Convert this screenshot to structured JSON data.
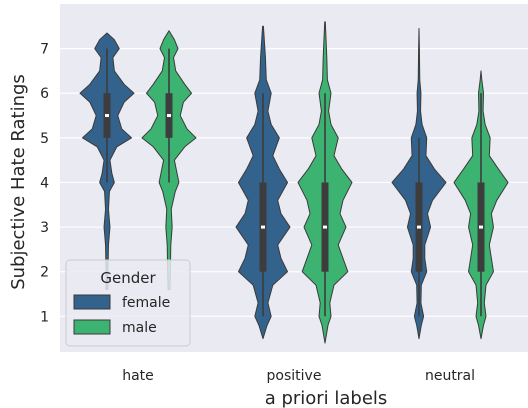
{
  "chart_data": {
    "type": "violin",
    "xlabel": "a priori labels",
    "ylabel": "Subjective Hate Ratings",
    "ylim": [
      0.2,
      8.0
    ],
    "yticks": [
      1,
      2,
      3,
      4,
      5,
      6,
      7
    ],
    "categories": [
      "hate",
      "positive",
      "neutral"
    ],
    "grid": true,
    "legend": {
      "title": "Gender",
      "placement": "lower-left",
      "entries": [
        {
          "name": "female",
          "color": "#33638d"
        },
        {
          "name": "male",
          "color": "#3cb371"
        }
      ]
    },
    "series": [
      {
        "name": "female",
        "color": "#33638d",
        "violins": [
          {
            "category": "hate",
            "range": [
              1.6,
              7.35
            ],
            "quartiles": [
              5.0,
              5.5,
              6.0
            ],
            "whiskers": [
              4.0,
              7.0
            ],
            "density": [
              [
                1.6,
                0.02
              ],
              [
                2.0,
                0.02
              ],
              [
                2.6,
                0.03
              ],
              [
                3.0,
                0.06
              ],
              [
                3.4,
                0.03
              ],
              [
                3.8,
                0.05
              ],
              [
                4.0,
                0.15
              ],
              [
                4.2,
                0.1
              ],
              [
                4.5,
                0.06
              ],
              [
                4.8,
                0.2
              ],
              [
                5.0,
                0.5
              ],
              [
                5.2,
                0.3
              ],
              [
                5.5,
                0.22
              ],
              [
                5.8,
                0.35
              ],
              [
                6.0,
                0.55
              ],
              [
                6.2,
                0.35
              ],
              [
                6.5,
                0.15
              ],
              [
                6.8,
                0.12
              ],
              [
                7.0,
                0.25
              ],
              [
                7.2,
                0.15
              ],
              [
                7.35,
                0.0
              ]
            ]
          },
          {
            "category": "positive",
            "range": [
              0.5,
              7.5
            ],
            "quartiles": [
              2.0,
              3.0,
              4.0
            ],
            "whiskers": [
              1.0,
              6.0
            ],
            "density": [
              [
                0.5,
                0.0
              ],
              [
                0.8,
                0.05
              ],
              [
                1.0,
                0.1
              ],
              [
                1.3,
                0.06
              ],
              [
                1.7,
                0.12
              ],
              [
                2.0,
                0.3
              ],
              [
                2.3,
                0.22
              ],
              [
                2.6,
                0.18
              ],
              [
                3.0,
                0.33
              ],
              [
                3.3,
                0.22
              ],
              [
                3.6,
                0.18
              ],
              [
                4.0,
                0.3
              ],
              [
                4.3,
                0.2
              ],
              [
                4.6,
                0.12
              ],
              [
                5.0,
                0.2
              ],
              [
                5.3,
                0.1
              ],
              [
                5.6,
                0.06
              ],
              [
                6.0,
                0.1
              ],
              [
                6.3,
                0.04
              ],
              [
                6.8,
                0.03
              ],
              [
                7.5,
                0.005
              ]
            ]
          },
          {
            "category": "neutral",
            "range": [
              0.5,
              7.45
            ],
            "quartiles": [
              2.0,
              3.0,
              4.0
            ],
            "whiskers": [
              1.0,
              5.0
            ],
            "density": [
              [
                0.5,
                0.0
              ],
              [
                0.8,
                0.06
              ],
              [
                1.0,
                0.12
              ],
              [
                1.3,
                0.05
              ],
              [
                1.7,
                0.06
              ],
              [
                2.0,
                0.2
              ],
              [
                2.3,
                0.15
              ],
              [
                2.6,
                0.15
              ],
              [
                3.0,
                0.3
              ],
              [
                3.3,
                0.22
              ],
              [
                3.6,
                0.35
              ],
              [
                4.0,
                0.7
              ],
              [
                4.3,
                0.4
              ],
              [
                4.6,
                0.18
              ],
              [
                5.0,
                0.2
              ],
              [
                5.3,
                0.08
              ],
              [
                5.6,
                0.04
              ],
              [
                6.0,
                0.05
              ],
              [
                6.3,
                0.02
              ],
              [
                7.0,
                0.01
              ],
              [
                7.45,
                0.0
              ]
            ]
          }
        ]
      },
      {
        "name": "male",
        "color": "#3cb371",
        "violins": [
          {
            "category": "hate",
            "range": [
              1.6,
              7.4
            ],
            "quartiles": [
              5.0,
              5.5,
              6.0
            ],
            "whiskers": [
              4.0,
              7.0
            ],
            "density": [
              [
                1.6,
                0.02
              ],
              [
                2.0,
                0.03
              ],
              [
                2.6,
                0.04
              ],
              [
                3.0,
                0.07
              ],
              [
                3.4,
                0.05
              ],
              [
                3.8,
                0.14
              ],
              [
                4.0,
                0.22
              ],
              [
                4.2,
                0.18
              ],
              [
                4.5,
                0.12
              ],
              [
                4.8,
                0.35
              ],
              [
                5.0,
                0.6
              ],
              [
                5.2,
                0.4
              ],
              [
                5.5,
                0.25
              ],
              [
                5.8,
                0.32
              ],
              [
                6.0,
                0.5
              ],
              [
                6.2,
                0.35
              ],
              [
                6.5,
                0.15
              ],
              [
                6.8,
                0.1
              ],
              [
                7.0,
                0.2
              ],
              [
                7.2,
                0.12
              ],
              [
                7.4,
                0.0
              ]
            ]
          },
          {
            "category": "positive",
            "range": [
              0.4,
              7.6
            ],
            "quartiles": [
              2.0,
              3.0,
              4.0
            ],
            "whiskers": [
              1.0,
              6.0
            ],
            "density": [
              [
                0.4,
                0.0
              ],
              [
                0.8,
                0.05
              ],
              [
                1.0,
                0.1
              ],
              [
                1.3,
                0.08
              ],
              [
                1.7,
                0.15
              ],
              [
                2.0,
                0.38
              ],
              [
                2.3,
                0.3
              ],
              [
                2.6,
                0.22
              ],
              [
                3.0,
                0.35
              ],
              [
                3.3,
                0.25
              ],
              [
                3.6,
                0.3
              ],
              [
                4.0,
                0.45
              ],
              [
                4.3,
                0.28
              ],
              [
                4.6,
                0.15
              ],
              [
                5.0,
                0.22
              ],
              [
                5.3,
                0.1
              ],
              [
                5.6,
                0.06
              ],
              [
                6.0,
                0.1
              ],
              [
                6.3,
                0.04
              ],
              [
                6.8,
                0.03
              ],
              [
                7.6,
                0.005
              ]
            ]
          },
          {
            "category": "neutral",
            "range": [
              0.5,
              6.5
            ],
            "quartiles": [
              2.0,
              3.0,
              4.0
            ],
            "whiskers": [
              1.0,
              6.0
            ],
            "density": [
              [
                0.5,
                0.0
              ],
              [
                0.8,
                0.06
              ],
              [
                1.0,
                0.12
              ],
              [
                1.3,
                0.08
              ],
              [
                1.7,
                0.12
              ],
              [
                2.0,
                0.3
              ],
              [
                2.3,
                0.25
              ],
              [
                2.6,
                0.2
              ],
              [
                3.0,
                0.3
              ],
              [
                3.3,
                0.25
              ],
              [
                3.6,
                0.38
              ],
              [
                4.0,
                0.65
              ],
              [
                4.3,
                0.42
              ],
              [
                4.6,
                0.2
              ],
              [
                5.0,
                0.22
              ],
              [
                5.3,
                0.1
              ],
              [
                5.6,
                0.05
              ],
              [
                6.0,
                0.06
              ],
              [
                6.3,
                0.02
              ],
              [
                6.5,
                0.0
              ]
            ]
          }
        ]
      }
    ]
  }
}
